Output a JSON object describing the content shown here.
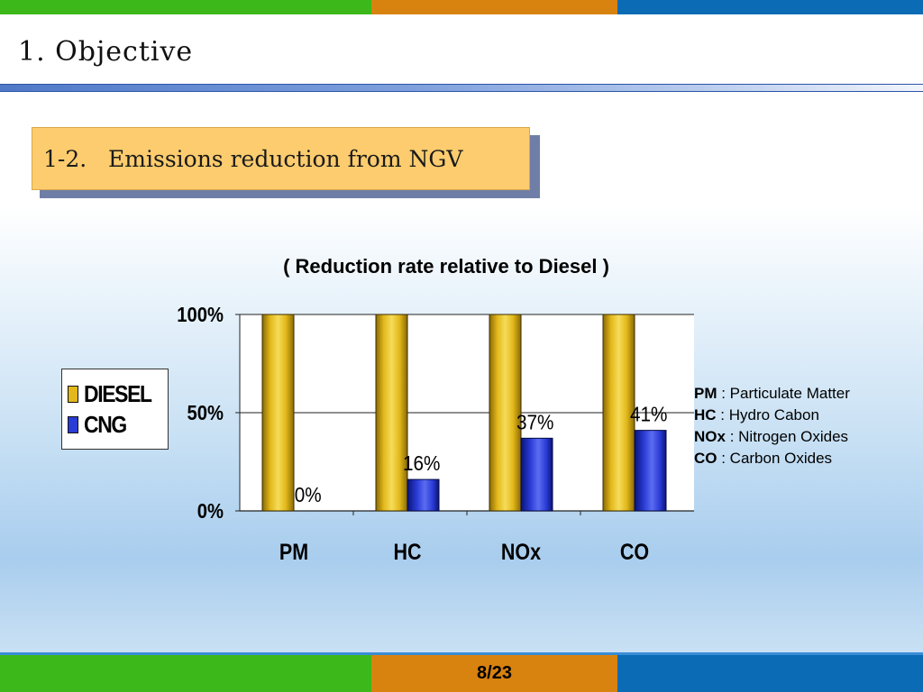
{
  "slide": {
    "title_number": "1.",
    "title_text": "Objective",
    "subtitle": "1-2.   Emissions reduction from NGV",
    "page": "8/23"
  },
  "colors": {
    "diesel": "#e2b81a",
    "cng": "#2a3cd6",
    "stripe_green": "#3cb81a",
    "stripe_orange": "#d8820f",
    "stripe_blue": "#0b6bb5",
    "subtitle_bg": "#fccc6e"
  },
  "abbreviations": [
    {
      "abbr": "PM",
      "desc": " : Particulate Matter"
    },
    {
      "abbr": "HC",
      "desc": " : Hydro Cabon"
    },
    {
      "abbr": "NOx",
      "desc": " : Nitrogen Oxides"
    },
    {
      "abbr": "CO",
      "desc": " : Carbon Oxides"
    }
  ],
  "chart_data": {
    "type": "bar",
    "title": "( Reduction rate relative to Diesel )",
    "categories": [
      "PM",
      "HC",
      "NOx",
      "CO"
    ],
    "series": [
      {
        "name": "DIESEL",
        "values": [
          100,
          100,
          100,
          100
        ]
      },
      {
        "name": "CNG",
        "values": [
          0,
          16,
          37,
          41
        ]
      }
    ],
    "data_labels": [
      "0%",
      "16%",
      "37%",
      "41%"
    ],
    "yticks": [
      "0%",
      "50%",
      "100%"
    ],
    "ylim": [
      0,
      100
    ],
    "grid": true,
    "legend_position": "left"
  }
}
